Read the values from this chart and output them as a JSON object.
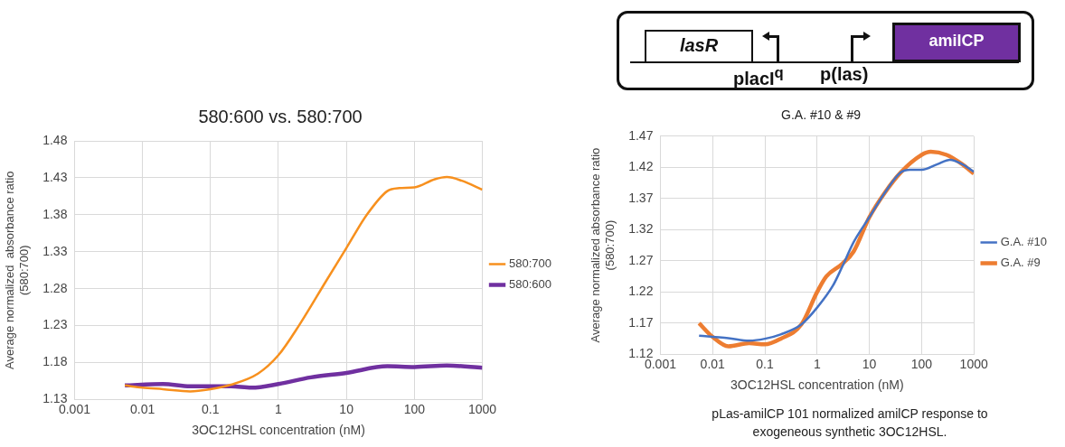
{
  "chart_data": [
    {
      "type": "line",
      "title": "580:600 vs. 580:700",
      "xlabel": "3OC12HSL concentration (nM)",
      "ylabel": "Average normalized  absorbance ratio (580:700)",
      "log": "x",
      "xlim": [
        0.001,
        1000
      ],
      "xticks": [
        0.001,
        0.01,
        0.1,
        1,
        10,
        100,
        1000
      ],
      "ylim": [
        1.13,
        1.48
      ],
      "yticks": [
        1.13,
        1.18,
        1.23,
        1.28,
        1.33,
        1.38,
        1.43,
        1.48
      ],
      "grid": true,
      "legend": "right",
      "marker": "none",
      "series": [
        {
          "name": "580:700",
          "color": "#f7901e",
          "x": [
            0.0055,
            0.01,
            0.02,
            0.05,
            0.1,
            0.2,
            0.5,
            1,
            2,
            5,
            10,
            20,
            40,
            60,
            100,
            200,
            300,
            500,
            1000
          ],
          "values": [
            1.149,
            1.146,
            1.144,
            1.141,
            1.144,
            1.15,
            1.165,
            1.19,
            1.23,
            1.29,
            1.335,
            1.38,
            1.412,
            1.416,
            1.417,
            1.428,
            1.431,
            1.426,
            1.414
          ]
        },
        {
          "name": "580:600",
          "color": "#7030a0",
          "x": [
            0.0055,
            0.02,
            0.05,
            0.2,
            0.4,
            1,
            3,
            10,
            40,
            100,
            300,
            1000
          ],
          "values": [
            1.149,
            1.151,
            1.148,
            1.148,
            1.146,
            1.151,
            1.16,
            1.166,
            1.175,
            1.174,
            1.176,
            1.173
          ]
        }
      ]
    },
    {
      "type": "line",
      "title": "G.A. #10 & #9",
      "xlabel": "3OC12HSL concentration (nM)",
      "ylabel": "Average normalized absorbance ratio (580:700)",
      "log": "x",
      "xlim": [
        0.001,
        1000
      ],
      "xticks": [
        0.001,
        0.01,
        0.1,
        1,
        10,
        100,
        1000
      ],
      "ylim": [
        1.12,
        1.47
      ],
      "yticks": [
        1.12,
        1.17,
        1.22,
        1.27,
        1.32,
        1.37,
        1.42,
        1.47
      ],
      "grid": true,
      "legend": "right",
      "marker": "none",
      "annotations": [
        "lasR",
        "placI$^{q}$",
        "p(las)",
        "amilCP",
        "pLas-amilCP 101 normalized amilCP response to exogeneous synthetic 3OC12HSL."
      ],
      "series": [
        {
          "name": "G.A. #10",
          "color": "#4472c4",
          "x": [
            0.0055,
            0.01,
            0.02,
            0.05,
            0.1,
            0.2,
            0.5,
            1,
            2,
            3,
            5,
            10,
            20,
            40,
            60,
            100,
            200,
            350,
            600,
            1000
          ],
          "values": [
            1.15,
            1.148,
            1.146,
            1.142,
            1.145,
            1.152,
            1.168,
            1.195,
            1.23,
            1.26,
            1.3,
            1.34,
            1.38,
            1.412,
            1.416,
            1.416,
            1.425,
            1.432,
            1.425,
            1.413
          ]
        },
        {
          "name": "G.A. #9",
          "color": "#ed7d31",
          "x": [
            0.0055,
            0.01,
            0.02,
            0.05,
            0.1,
            0.2,
            0.5,
            1,
            1.5,
            3,
            5,
            10,
            20,
            40,
            100,
            150,
            300,
            600,
            1000
          ],
          "values": [
            1.17,
            1.148,
            1.133,
            1.138,
            1.136,
            1.145,
            1.168,
            1.22,
            1.245,
            1.265,
            1.285,
            1.34,
            1.38,
            1.412,
            1.44,
            1.445,
            1.44,
            1.425,
            1.41
          ]
        }
      ]
    }
  ]
}
